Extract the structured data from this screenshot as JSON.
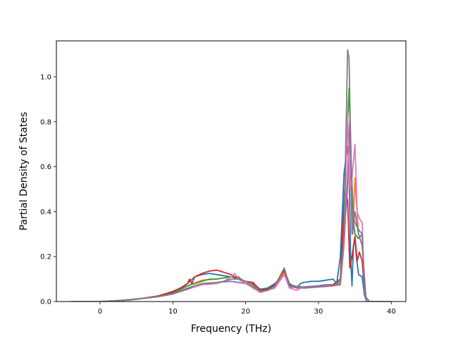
{
  "chart_data": {
    "type": "line",
    "title": "",
    "xlabel": "Frequency (THz)",
    "ylabel": "Partial Density of States",
    "xlim": [
      -6,
      42
    ],
    "ylim": [
      0,
      1.16
    ],
    "xticks": [
      0,
      10,
      20,
      30,
      40
    ],
    "yticks": [
      0.0,
      0.2,
      0.4,
      0.6,
      0.8,
      1.0
    ],
    "xtick_labels": [
      "0",
      "10",
      "20",
      "30",
      "40"
    ],
    "ytick_labels": [
      "0.0",
      "0.2",
      "0.4",
      "0.6",
      "0.8",
      "1.0"
    ],
    "grid": false,
    "series": [
      {
        "color": "#1f77b4",
        "x": [
          -4,
          0,
          2,
          4,
          6,
          8,
          10,
          11,
          12,
          13,
          14,
          15,
          16,
          17,
          18,
          19,
          19.5,
          20,
          21,
          22,
          23,
          24,
          25,
          25.3,
          26,
          27,
          27.5,
          28,
          29,
          30,
          31,
          32,
          32.5,
          33,
          33.5,
          33.8,
          34,
          34.2,
          34.4,
          34.6,
          34.8,
          35,
          35.2,
          35.5,
          36,
          36.3,
          36.6,
          37,
          40
        ],
        "y": [
          0,
          0,
          0.003,
          0.008,
          0.015,
          0.025,
          0.04,
          0.055,
          0.08,
          0.11,
          0.12,
          0.125,
          0.12,
          0.115,
          0.11,
          0.1,
          0.09,
          0.08,
          0.08,
          0.055,
          0.06,
          0.08,
          0.11,
          0.14,
          0.08,
          0.06,
          0.08,
          0.085,
          0.09,
          0.09,
          0.095,
          0.1,
          0.08,
          0.2,
          0.57,
          0.65,
          0.69,
          0.6,
          0.2,
          0.07,
          0.25,
          0.28,
          0.2,
          0.12,
          0.11,
          0.03,
          0,
          0,
          0
        ]
      },
      {
        "color": "#ff7f0e",
        "x": [
          -4,
          0,
          4,
          8,
          10,
          12,
          14,
          16,
          18,
          19,
          20,
          22,
          23,
          24,
          25.3,
          26,
          28,
          30,
          32,
          33,
          33.5,
          34,
          34.3,
          34.7,
          35,
          35.5,
          36,
          36.5,
          37,
          40
        ],
        "y": [
          0,
          0,
          0.007,
          0.022,
          0.035,
          0.07,
          0.095,
          0.1,
          0.11,
          0.105,
          0.09,
          0.05,
          0.055,
          0.07,
          0.13,
          0.07,
          0.06,
          0.065,
          0.07,
          0.08,
          0.3,
          0.5,
          0.75,
          0.3,
          0.55,
          0.3,
          0.25,
          0.02,
          0,
          0
        ]
      },
      {
        "color": "#2ca02c",
        "x": [
          -4,
          0,
          4,
          8,
          10,
          12,
          14,
          15,
          16,
          17,
          18,
          19,
          20,
          22,
          23,
          24,
          25.3,
          26,
          28,
          30,
          32,
          33,
          33.5,
          34,
          34.2,
          34.5,
          34.8,
          35,
          35.5,
          36,
          36.3,
          36.6,
          37,
          40
        ],
        "y": [
          0,
          0,
          0.007,
          0.022,
          0.035,
          0.07,
          0.09,
          0.1,
          0.1,
          0.105,
          0.11,
          0.11,
          0.08,
          0.05,
          0.055,
          0.075,
          0.14,
          0.075,
          0.06,
          0.07,
          0.075,
          0.09,
          0.35,
          0.8,
          0.95,
          0.6,
          0.35,
          0.3,
          0.28,
          0.3,
          0.05,
          0,
          0,
          0
        ]
      },
      {
        "color": "#d62728",
        "x": [
          -4,
          0,
          2,
          4,
          6,
          8,
          10,
          11,
          12,
          12.3,
          12.6,
          13,
          14,
          15,
          16,
          17,
          18,
          19,
          20,
          21,
          22,
          23,
          24,
          25.3,
          26,
          27,
          28,
          30,
          31,
          32,
          33,
          33.3,
          33.6,
          34,
          34.3,
          34.6,
          35,
          35.3,
          35.6,
          36,
          36.3,
          36.6,
          37,
          40
        ],
        "y": [
          0,
          0,
          0.003,
          0.008,
          0.015,
          0.025,
          0.045,
          0.06,
          0.08,
          0.1,
          0.08,
          0.11,
          0.125,
          0.135,
          0.14,
          0.13,
          0.12,
          0.1,
          0.09,
          0.085,
          0.05,
          0.055,
          0.075,
          0.14,
          0.075,
          0.06,
          0.065,
          0.07,
          0.075,
          0.075,
          0.1,
          0.3,
          0.5,
          0.45,
          0.15,
          0.2,
          0.29,
          0.18,
          0.22,
          0.18,
          0.05,
          0,
          0,
          0
        ]
      },
      {
        "color": "#9467bd",
        "x": [
          -4,
          0,
          4,
          8,
          10,
          12,
          14,
          16,
          18,
          20,
          22,
          23,
          24,
          25.3,
          26,
          28,
          30,
          32,
          33,
          33.5,
          34,
          34.3,
          34.6,
          35,
          35.5,
          36,
          36.5,
          37,
          40
        ],
        "y": [
          0,
          0,
          0.007,
          0.022,
          0.033,
          0.06,
          0.08,
          0.085,
          0.09,
          0.08,
          0.045,
          0.05,
          0.065,
          0.12,
          0.065,
          0.06,
          0.065,
          0.07,
          0.075,
          0.25,
          0.55,
          0.8,
          0.3,
          0.4,
          0.3,
          0.25,
          0.02,
          0,
          0
        ]
      },
      {
        "color": "#e377c2",
        "x": [
          -4,
          0,
          4,
          8,
          10,
          12,
          14,
          16,
          17,
          18,
          18.5,
          19,
          20,
          22,
          23,
          24,
          25.3,
          26,
          27,
          28,
          30,
          31,
          32,
          33,
          33.5,
          33.8,
          34,
          34.3,
          34.6,
          35,
          35.3,
          35.6,
          36,
          36.3,
          36.6,
          37,
          40
        ],
        "y": [
          0,
          0,
          0.007,
          0.022,
          0.033,
          0.055,
          0.075,
          0.08,
          0.09,
          0.11,
          0.125,
          0.1,
          0.08,
          0.04,
          0.05,
          0.06,
          0.12,
          0.06,
          0.05,
          0.065,
          0.07,
          0.075,
          0.07,
          0.08,
          0.25,
          0.6,
          0.84,
          0.5,
          0.55,
          0.7,
          0.4,
          0.37,
          0.35,
          0.05,
          0,
          0,
          0
        ]
      },
      {
        "color": "#7f7f7f",
        "x": [
          -4,
          0,
          2,
          4,
          6,
          8,
          10,
          11,
          12,
          13,
          14,
          15,
          16,
          17,
          18,
          19,
          20,
          21,
          22,
          23,
          24,
          25.3,
          26,
          28,
          30,
          31,
          32,
          33,
          33.5,
          33.8,
          34,
          34.1,
          34.2,
          34.3,
          34.5,
          34.8,
          35,
          35.5,
          36,
          36.3,
          36.6,
          37,
          40
        ],
        "y": [
          0,
          0,
          0.003,
          0.007,
          0.014,
          0.022,
          0.035,
          0.045,
          0.055,
          0.07,
          0.08,
          0.08,
          0.085,
          0.09,
          0.1,
          0.1,
          0.09,
          0.075,
          0.045,
          0.05,
          0.07,
          0.15,
          0.07,
          0.065,
          0.07,
          0.075,
          0.07,
          0.08,
          0.3,
          0.8,
          1.12,
          1.1,
          1.08,
          0.9,
          0.6,
          0.38,
          0.35,
          0.32,
          0.3,
          0.05,
          0,
          0,
          0
        ]
      }
    ]
  }
}
